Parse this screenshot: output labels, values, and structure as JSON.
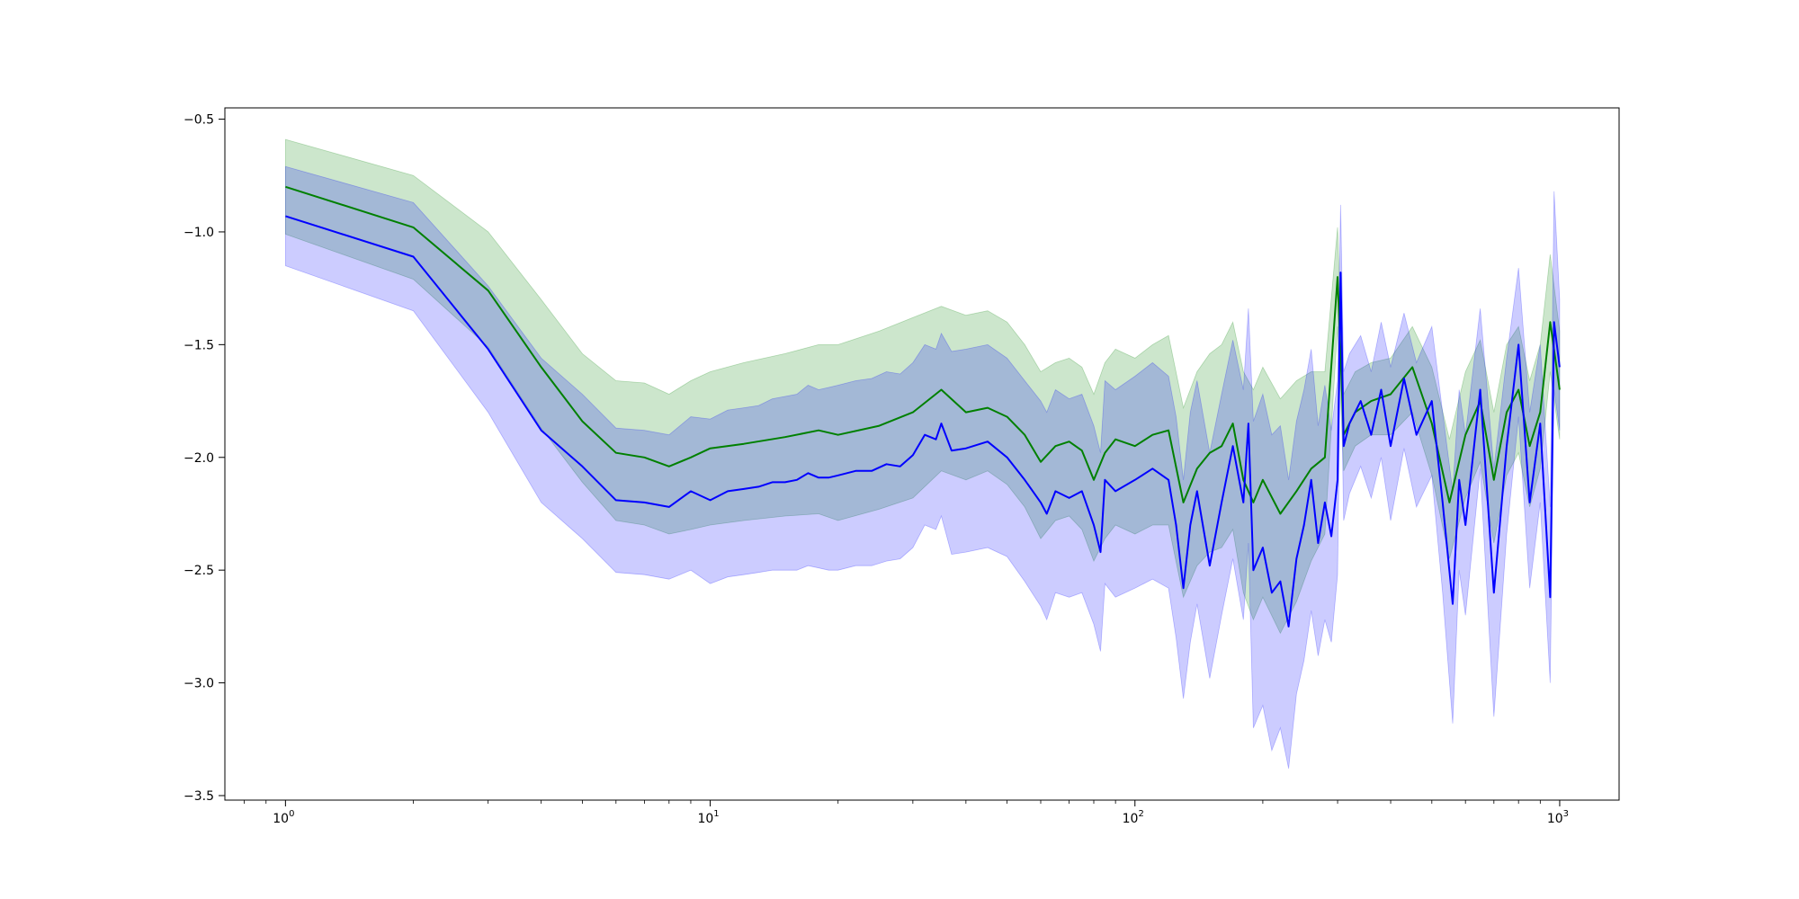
{
  "chart_data": {
    "type": "line",
    "title": "",
    "xlabel": "",
    "ylabel": "",
    "xscale": "log",
    "xlim": [
      0.72,
      1380
    ],
    "ylim": [
      -3.52,
      -0.45
    ],
    "grid": false,
    "legend": "none",
    "x_ticks": [
      {
        "value": 1,
        "base": "10",
        "exp": "0"
      },
      {
        "value": 10,
        "base": "10",
        "exp": "1"
      },
      {
        "value": 100,
        "base": "10",
        "exp": "2"
      },
      {
        "value": 1000,
        "base": "10",
        "exp": "3"
      }
    ],
    "y_ticks": [
      {
        "value": -0.5,
        "label": "−0.5"
      },
      {
        "value": -1.0,
        "label": "−1.0"
      },
      {
        "value": -1.5,
        "label": "−1.5"
      },
      {
        "value": -2.0,
        "label": "−2.0"
      },
      {
        "value": -2.5,
        "label": "−2.5"
      },
      {
        "value": -3.0,
        "label": "−3.0"
      },
      {
        "value": -3.5,
        "label": "−3.5"
      }
    ],
    "series": [
      {
        "color": "#008000",
        "band_color": "#008000",
        "band_opacity": 0.2,
        "x": [
          1,
          2,
          3,
          4,
          5,
          6,
          7,
          8,
          9,
          10,
          12,
          15,
          18,
          20,
          25,
          30,
          35,
          40,
          45,
          50,
          55,
          60,
          65,
          70,
          75,
          80,
          85,
          90,
          100,
          110,
          120,
          130,
          140,
          150,
          160,
          170,
          180,
          190,
          200,
          220,
          240,
          260,
          280,
          300,
          310,
          330,
          360,
          400,
          450,
          500,
          550,
          600,
          650,
          700,
          750,
          800,
          850,
          900,
          950,
          1000
        ],
        "values": [
          -0.8,
          -0.98,
          -1.26,
          -1.6,
          -1.84,
          -1.98,
          -2.0,
          -2.04,
          -2.0,
          -1.96,
          -1.94,
          -1.91,
          -1.88,
          -1.9,
          -1.86,
          -1.8,
          -1.7,
          -1.8,
          -1.78,
          -1.82,
          -1.9,
          -2.02,
          -1.95,
          -1.93,
          -1.97,
          -2.1,
          -1.98,
          -1.92,
          -1.95,
          -1.9,
          -1.88,
          -2.2,
          -2.05,
          -1.98,
          -1.95,
          -1.85,
          -2.1,
          -2.2,
          -2.1,
          -2.25,
          -2.15,
          -2.05,
          -2.0,
          -1.2,
          -1.9,
          -1.8,
          -1.75,
          -1.72,
          -1.6,
          -1.85,
          -2.2,
          -1.9,
          -1.75,
          -2.1,
          -1.8,
          -1.7,
          -1.95,
          -1.8,
          -1.4,
          -1.7
        ],
        "lower": [
          -1.01,
          -1.21,
          -1.51,
          -1.87,
          -2.11,
          -2.28,
          -2.3,
          -2.34,
          -2.32,
          -2.3,
          -2.28,
          -2.26,
          -2.25,
          -2.28,
          -2.23,
          -2.18,
          -2.06,
          -2.1,
          -2.06,
          -2.12,
          -2.22,
          -2.36,
          -2.28,
          -2.26,
          -2.32,
          -2.46,
          -2.36,
          -2.3,
          -2.34,
          -2.3,
          -2.3,
          -2.62,
          -2.48,
          -2.42,
          -2.4,
          -2.32,
          -2.6,
          -2.72,
          -2.62,
          -2.78,
          -2.64,
          -2.46,
          -2.34,
          -1.42,
          -2.06,
          -1.95,
          -1.9,
          -1.9,
          -1.8,
          -2.08,
          -2.45,
          -2.18,
          -2.02,
          -2.38,
          -2.08,
          -1.98,
          -2.22,
          -2.05,
          -1.62,
          -1.92
        ],
        "upper": [
          -0.59,
          -0.75,
          -1.0,
          -1.3,
          -1.54,
          -1.66,
          -1.67,
          -1.72,
          -1.66,
          -1.62,
          -1.58,
          -1.54,
          -1.5,
          -1.5,
          -1.44,
          -1.38,
          -1.33,
          -1.37,
          -1.35,
          -1.4,
          -1.5,
          -1.62,
          -1.58,
          -1.56,
          -1.6,
          -1.72,
          -1.58,
          -1.52,
          -1.56,
          -1.5,
          -1.46,
          -1.78,
          -1.62,
          -1.54,
          -1.5,
          -1.4,
          -1.62,
          -1.7,
          -1.6,
          -1.74,
          -1.66,
          -1.62,
          -1.62,
          -0.98,
          -1.72,
          -1.62,
          -1.58,
          -1.56,
          -1.42,
          -1.6,
          -1.92,
          -1.62,
          -1.48,
          -1.8,
          -1.5,
          -1.42,
          -1.66,
          -1.5,
          -1.1,
          -1.44
        ]
      },
      {
        "color": "#0000ff",
        "band_color": "#0000ff",
        "band_opacity": 0.2,
        "x": [
          1,
          2,
          3,
          4,
          5,
          6,
          7,
          8,
          9,
          10,
          11,
          12,
          13,
          14,
          15,
          16,
          17,
          18,
          19,
          20,
          22,
          24,
          26,
          28,
          30,
          32,
          34,
          35,
          37,
          40,
          45,
          50,
          55,
          60,
          62,
          65,
          70,
          75,
          80,
          83,
          85,
          90,
          100,
          110,
          120,
          125,
          130,
          135,
          140,
          150,
          160,
          170,
          180,
          185,
          190,
          200,
          210,
          220,
          230,
          240,
          250,
          260,
          270,
          280,
          290,
          300,
          305,
          310,
          320,
          340,
          360,
          380,
          400,
          430,
          460,
          500,
          530,
          560,
          580,
          600,
          650,
          700,
          750,
          800,
          850,
          900,
          950,
          970,
          1000
        ],
        "values": [
          -0.93,
          -1.11,
          -1.52,
          -1.88,
          -2.04,
          -2.19,
          -2.2,
          -2.22,
          -2.15,
          -2.19,
          -2.15,
          -2.14,
          -2.13,
          -2.11,
          -2.11,
          -2.1,
          -2.07,
          -2.09,
          -2.09,
          -2.08,
          -2.06,
          -2.06,
          -2.03,
          -2.04,
          -1.99,
          -1.9,
          -1.92,
          -1.85,
          -1.97,
          -1.96,
          -1.93,
          -2.0,
          -2.1,
          -2.2,
          -2.25,
          -2.15,
          -2.18,
          -2.15,
          -2.3,
          -2.42,
          -2.1,
          -2.15,
          -2.1,
          -2.05,
          -2.1,
          -2.3,
          -2.58,
          -2.3,
          -2.15,
          -2.48,
          -2.2,
          -1.95,
          -2.2,
          -1.85,
          -2.5,
          -2.4,
          -2.6,
          -2.55,
          -2.75,
          -2.45,
          -2.3,
          -2.1,
          -2.38,
          -2.2,
          -2.35,
          -2.1,
          -1.18,
          -1.95,
          -1.85,
          -1.75,
          -1.9,
          -1.7,
          -1.95,
          -1.65,
          -1.9,
          -1.75,
          -2.2,
          -2.65,
          -2.1,
          -2.3,
          -1.7,
          -2.6,
          -1.95,
          -1.5,
          -2.2,
          -1.85,
          -2.62,
          -1.4,
          -1.6
        ],
        "lower": [
          -1.15,
          -1.35,
          -1.8,
          -2.2,
          -2.36,
          -2.51,
          -2.52,
          -2.54,
          -2.5,
          -2.56,
          -2.53,
          -2.52,
          -2.51,
          -2.5,
          -2.5,
          -2.5,
          -2.48,
          -2.49,
          -2.5,
          -2.5,
          -2.48,
          -2.48,
          -2.46,
          -2.45,
          -2.4,
          -2.3,
          -2.32,
          -2.26,
          -2.43,
          -2.42,
          -2.4,
          -2.44,
          -2.55,
          -2.66,
          -2.72,
          -2.6,
          -2.62,
          -2.6,
          -2.74,
          -2.86,
          -2.56,
          -2.62,
          -2.58,
          -2.54,
          -2.58,
          -2.8,
          -3.07,
          -2.82,
          -2.65,
          -2.98,
          -2.7,
          -2.45,
          -2.72,
          -2.38,
          -3.2,
          -3.1,
          -3.3,
          -3.2,
          -3.38,
          -3.05,
          -2.9,
          -2.68,
          -2.88,
          -2.72,
          -2.82,
          -2.52,
          -1.5,
          -2.28,
          -2.16,
          -2.04,
          -2.18,
          -2.0,
          -2.28,
          -1.96,
          -2.22,
          -2.08,
          -2.6,
          -3.18,
          -2.5,
          -2.7,
          -2.05,
          -3.15,
          -2.34,
          -1.82,
          -2.58,
          -2.2,
          -3.0,
          -1.7,
          -1.88
        ],
        "upper": [
          -0.71,
          -0.87,
          -1.24,
          -1.56,
          -1.72,
          -1.87,
          -1.88,
          -1.9,
          -1.82,
          -1.83,
          -1.79,
          -1.78,
          -1.77,
          -1.74,
          -1.73,
          -1.72,
          -1.68,
          -1.7,
          -1.69,
          -1.68,
          -1.66,
          -1.65,
          -1.62,
          -1.63,
          -1.58,
          -1.5,
          -1.52,
          -1.45,
          -1.53,
          -1.52,
          -1.5,
          -1.56,
          -1.66,
          -1.75,
          -1.8,
          -1.7,
          -1.74,
          -1.72,
          -1.86,
          -1.98,
          -1.66,
          -1.7,
          -1.64,
          -1.58,
          -1.64,
          -1.82,
          -2.1,
          -1.8,
          -1.66,
          -1.98,
          -1.72,
          -1.48,
          -1.7,
          -1.34,
          -1.84,
          -1.72,
          -1.9,
          -1.86,
          -2.1,
          -1.84,
          -1.7,
          -1.52,
          -1.86,
          -1.68,
          -1.88,
          -1.66,
          -0.88,
          -1.62,
          -1.54,
          -1.46,
          -1.62,
          -1.4,
          -1.6,
          -1.36,
          -1.58,
          -1.42,
          -1.8,
          -2.15,
          -1.7,
          -1.9,
          -1.34,
          -2.05,
          -1.56,
          -1.16,
          -1.8,
          -1.5,
          -2.22,
          -0.82,
          -1.3
        ]
      }
    ]
  }
}
